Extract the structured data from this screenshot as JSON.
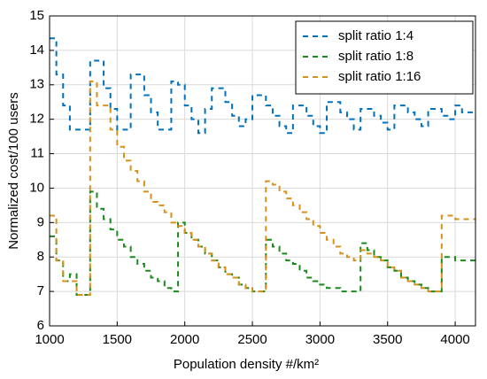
{
  "chart_data": {
    "type": "line",
    "step": true,
    "xlabel": "Population density #/km²",
    "ylabel": "Normalized cost/100 users",
    "x": [
      1000,
      1050,
      1100,
      1150,
      1200,
      1250,
      1300,
      1350,
      1400,
      1450,
      1500,
      1550,
      1600,
      1650,
      1700,
      1750,
      1800,
      1850,
      1900,
      1950,
      2000,
      2050,
      2100,
      2150,
      2200,
      2250,
      2300,
      2350,
      2400,
      2450,
      2500,
      2550,
      2600,
      2650,
      2700,
      2750,
      2800,
      2850,
      2900,
      2950,
      3000,
      3050,
      3100,
      3150,
      3200,
      3250,
      3300,
      3350,
      3400,
      3450,
      3500,
      3550,
      3600,
      3650,
      3700,
      3750,
      3800,
      3850,
      3900,
      3950,
      4000,
      4050
    ],
    "series": [
      {
        "name": "split ratio 1:4",
        "color": "#0072bd",
        "values": [
          14.35,
          13.3,
          12.4,
          11.7,
          11.7,
          11.7,
          13.7,
          13.7,
          12.9,
          12.3,
          11.7,
          11.7,
          13.3,
          13.3,
          12.7,
          12.2,
          11.7,
          11.7,
          13.1,
          13.0,
          12.4,
          12.0,
          11.6,
          12.3,
          12.9,
          12.9,
          12.5,
          12.1,
          11.8,
          12.0,
          12.7,
          12.7,
          12.4,
          12.1,
          11.8,
          11.6,
          12.4,
          12.4,
          12.1,
          11.8,
          11.6,
          12.5,
          12.5,
          12.2,
          12.0,
          11.7,
          12.3,
          12.3,
          12.1,
          11.9,
          11.7,
          12.4,
          12.4,
          12.2,
          12.0,
          11.8,
          12.3,
          12.3,
          12.1,
          12.0,
          12.4,
          12.2
        ]
      },
      {
        "name": "split ratio 1:8",
        "color": "#1a8a1a",
        "values": [
          8.6,
          7.9,
          7.3,
          7.5,
          6.9,
          6.9,
          9.9,
          9.4,
          9.1,
          8.8,
          8.5,
          8.3,
          8.0,
          7.8,
          7.6,
          7.4,
          7.3,
          7.1,
          7.0,
          9.0,
          8.7,
          8.5,
          8.3,
          8.1,
          7.9,
          7.7,
          7.5,
          7.4,
          7.2,
          7.1,
          7.0,
          7.0,
          8.5,
          8.3,
          8.1,
          7.9,
          7.8,
          7.6,
          7.4,
          7.3,
          7.2,
          7.1,
          7.1,
          7.0,
          7.0,
          7.0,
          8.4,
          8.2,
          8.0,
          7.9,
          7.7,
          7.6,
          7.4,
          7.3,
          7.2,
          7.1,
          7.0,
          7.0,
          8.0,
          8.0,
          7.9,
          7.9
        ]
      },
      {
        "name": "split ratio 1:16",
        "color": "#d9901a",
        "values": [
          9.2,
          7.9,
          7.3,
          7.3,
          6.9,
          6.9,
          13.1,
          12.4,
          12.4,
          11.7,
          11.2,
          10.8,
          10.5,
          10.2,
          9.9,
          9.6,
          9.5,
          9.3,
          9.0,
          8.9,
          8.7,
          8.5,
          8.3,
          8.1,
          7.9,
          7.7,
          7.5,
          7.4,
          7.2,
          7.1,
          7.0,
          7.0,
          10.2,
          10.1,
          9.9,
          9.7,
          9.5,
          9.3,
          9.1,
          8.9,
          8.7,
          8.5,
          8.3,
          8.1,
          8.0,
          7.9,
          8.2,
          8.1,
          8.0,
          7.9,
          7.7,
          7.6,
          7.4,
          7.3,
          7.2,
          7.1,
          7.0,
          7.0,
          9.2,
          9.2,
          9.1,
          9.1
        ]
      }
    ],
    "xlim": [
      1000,
      4150
    ],
    "xticks": [
      1000,
      1500,
      2000,
      2500,
      3000,
      3500,
      4000
    ],
    "ylim": [
      6,
      15
    ],
    "yticks": [
      6,
      7,
      8,
      9,
      10,
      11,
      12,
      13,
      14,
      15
    ],
    "grid": true,
    "legend": "upper right"
  }
}
